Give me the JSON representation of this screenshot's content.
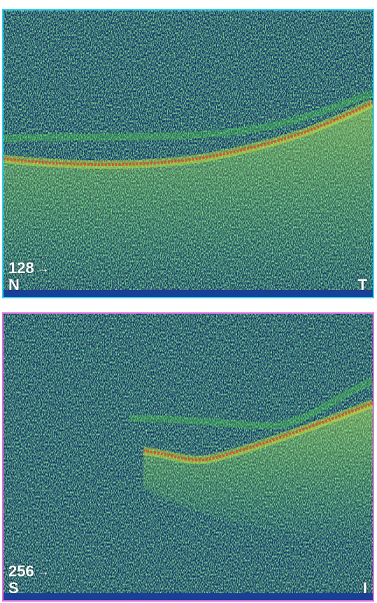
{
  "scans": [
    {
      "border_color": "#2fd0f0",
      "depth_label": "128",
      "depth_arrow_icon": "right-arrow-icon",
      "orientation_left": "N",
      "orientation_right": "T"
    },
    {
      "border_color": "#e070e0",
      "depth_label": "256",
      "depth_arrow_icon": "right-arrow-icon",
      "orientation_left": "S",
      "orientation_right": "I"
    }
  ],
  "colors": {
    "background_noise": "#12306a",
    "speckle_green": "#3ecf3e",
    "retina_yellow": "#d6e632",
    "rpe_red": "#e03a2a"
  },
  "arrow_glyph": "→"
}
